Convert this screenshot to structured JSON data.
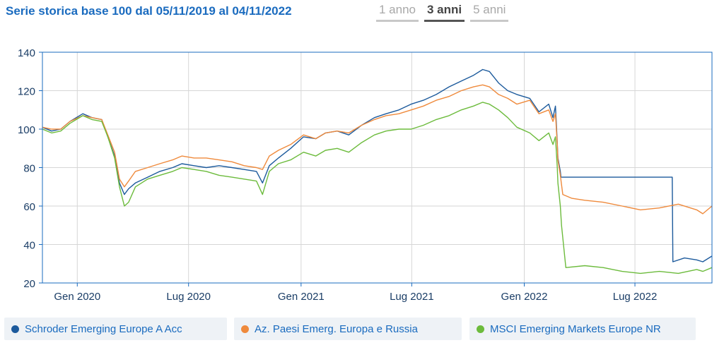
{
  "header": {
    "title": "Serie storica base 100 dal 05/11/2019 al 04/11/2022",
    "tabs": [
      {
        "label": "1 anno",
        "active": false
      },
      {
        "label": "3 anni",
        "active": true
      },
      {
        "label": "5 anni",
        "active": false
      }
    ]
  },
  "colors": {
    "series_1": "#1c5a9c",
    "series_2": "#ef8a3c",
    "series_3": "#6cbb3c",
    "axis": "#1a6bbf",
    "grid": "#d6d6d6"
  },
  "legend": {
    "items": [
      {
        "label": "Schroder Emerging Europe A Acc",
        "color": "#1c5a9c"
      },
      {
        "label": "Az. Paesi Emerg. Europa e Russia",
        "color": "#ef8a3c"
      },
      {
        "label": "MSCI Emerging Markets Europe NR",
        "color": "#6cbb3c"
      }
    ]
  },
  "chart_data": {
    "type": "line",
    "title": "Serie storica base 100 dal 05/11/2019 al 04/11/2022",
    "ylim": [
      20,
      140
    ],
    "yticks": [
      20,
      40,
      60,
      80,
      100,
      120,
      140
    ],
    "xlim": [
      "2019-11-05",
      "2022-11-04"
    ],
    "xticks": [
      {
        "date": "2020-01-01",
        "label": "Gen 2020"
      },
      {
        "date": "2020-07-01",
        "label": "Lug 2020"
      },
      {
        "date": "2021-01-01",
        "label": "Gen 2021"
      },
      {
        "date": "2021-07-01",
        "label": "Lug 2021"
      },
      {
        "date": "2022-01-01",
        "label": "Gen 2022"
      },
      {
        "date": "2022-07-01",
        "label": "Lug 2022"
      }
    ],
    "grid": true,
    "legend_position": "bottom",
    "series": [
      {
        "name": "Schroder Emerging Europe A Acc",
        "color": "#1c5a9c",
        "x": [
          "2019-11-05",
          "2019-11-20",
          "2019-12-05",
          "2019-12-20",
          "2020-01-10",
          "2020-01-25",
          "2020-02-10",
          "2020-02-20",
          "2020-03-02",
          "2020-03-10",
          "2020-03-18",
          "2020-03-25",
          "2020-04-05",
          "2020-04-25",
          "2020-05-15",
          "2020-06-05",
          "2020-06-20",
          "2020-07-10",
          "2020-07-30",
          "2020-08-20",
          "2020-09-10",
          "2020-09-30",
          "2020-10-20",
          "2020-10-30",
          "2020-11-10",
          "2020-11-25",
          "2020-12-15",
          "2021-01-05",
          "2021-01-25",
          "2021-02-10",
          "2021-03-01",
          "2021-03-20",
          "2021-04-10",
          "2021-05-01",
          "2021-05-20",
          "2021-06-10",
          "2021-06-30",
          "2021-07-20",
          "2021-08-10",
          "2021-08-31",
          "2021-09-20",
          "2021-10-10",
          "2021-10-25",
          "2021-11-05",
          "2021-11-20",
          "2021-12-05",
          "2021-12-20",
          "2022-01-10",
          "2022-01-25",
          "2022-02-10",
          "2022-02-17",
          "2022-02-21",
          "2022-02-24",
          "2022-02-25",
          "2022-03-01",
          "2022-03-02",
          "2022-08-31",
          "2022-09-01",
          "2022-09-20",
          "2022-10-10",
          "2022-10-20",
          "2022-11-04"
        ],
        "values": [
          101,
          99,
          100,
          104,
          108,
          106,
          105,
          96,
          86,
          72,
          66,
          69,
          72,
          75,
          78,
          80,
          82,
          81,
          80,
          81,
          80,
          79,
          78,
          72,
          81,
          85,
          90,
          96,
          95,
          98,
          99,
          97,
          102,
          106,
          108,
          110,
          113,
          115,
          118,
          122,
          125,
          128,
          131,
          130,
          124,
          120,
          118,
          116,
          109,
          113,
          106,
          112,
          93,
          85,
          78,
          75,
          75,
          31,
          33,
          32,
          31,
          34
        ]
      },
      {
        "name": "Az. Paesi Emerg. Europa e Russia",
        "color": "#ef8a3c",
        "x": [
          "2019-11-05",
          "2019-11-20",
          "2019-12-05",
          "2019-12-20",
          "2020-01-10",
          "2020-01-25",
          "2020-02-10",
          "2020-02-20",
          "2020-03-02",
          "2020-03-10",
          "2020-03-18",
          "2020-03-25",
          "2020-04-05",
          "2020-04-25",
          "2020-05-15",
          "2020-06-05",
          "2020-06-20",
          "2020-07-10",
          "2020-07-30",
          "2020-08-20",
          "2020-09-10",
          "2020-09-30",
          "2020-10-20",
          "2020-10-30",
          "2020-11-10",
          "2020-11-25",
          "2020-12-15",
          "2021-01-05",
          "2021-01-25",
          "2021-02-10",
          "2021-03-01",
          "2021-03-20",
          "2021-04-10",
          "2021-05-01",
          "2021-05-20",
          "2021-06-10",
          "2021-06-30",
          "2021-07-20",
          "2021-08-10",
          "2021-08-31",
          "2021-09-20",
          "2021-10-10",
          "2021-10-25",
          "2021-11-05",
          "2021-11-20",
          "2021-12-05",
          "2021-12-20",
          "2022-01-10",
          "2022-01-25",
          "2022-02-10",
          "2022-02-17",
          "2022-02-21",
          "2022-02-24",
          "2022-02-25",
          "2022-03-01",
          "2022-03-05",
          "2022-03-20",
          "2022-04-10",
          "2022-05-10",
          "2022-06-10",
          "2022-07-10",
          "2022-08-10",
          "2022-09-10",
          "2022-10-10",
          "2022-10-20",
          "2022-11-04"
        ],
        "values": [
          101,
          100,
          100,
          104,
          107,
          106,
          105,
          97,
          88,
          74,
          70,
          73,
          78,
          80,
          82,
          84,
          86,
          85,
          85,
          84,
          83,
          81,
          80,
          79,
          86,
          89,
          92,
          97,
          95,
          98,
          99,
          98,
          102,
          105,
          107,
          108,
          110,
          112,
          115,
          117,
          120,
          122,
          123,
          122,
          118,
          116,
          113,
          115,
          108,
          110,
          104,
          108,
          92,
          84,
          76,
          66,
          64,
          63,
          62,
          60,
          58,
          59,
          61,
          58,
          56,
          60
        ]
      },
      {
        "name": "MSCI Emerging Markets Europe NR",
        "color": "#6cbb3c",
        "x": [
          "2019-11-05",
          "2019-11-20",
          "2019-12-05",
          "2019-12-20",
          "2020-01-10",
          "2020-01-25",
          "2020-02-10",
          "2020-02-20",
          "2020-03-02",
          "2020-03-10",
          "2020-03-18",
          "2020-03-25",
          "2020-04-05",
          "2020-04-25",
          "2020-05-15",
          "2020-06-05",
          "2020-06-20",
          "2020-07-10",
          "2020-07-30",
          "2020-08-20",
          "2020-09-10",
          "2020-09-30",
          "2020-10-20",
          "2020-10-30",
          "2020-11-10",
          "2020-11-25",
          "2020-12-15",
          "2021-01-05",
          "2021-01-25",
          "2021-02-10",
          "2021-03-01",
          "2021-03-20",
          "2021-04-10",
          "2021-05-01",
          "2021-05-20",
          "2021-06-10",
          "2021-06-30",
          "2021-07-20",
          "2021-08-10",
          "2021-08-31",
          "2021-09-20",
          "2021-10-10",
          "2021-10-25",
          "2021-11-05",
          "2021-11-20",
          "2021-12-05",
          "2021-12-20",
          "2022-01-10",
          "2022-01-25",
          "2022-02-10",
          "2022-02-17",
          "2022-02-21",
          "2022-02-24",
          "2022-02-25",
          "2022-03-01",
          "2022-03-03",
          "2022-03-10",
          "2022-04-10",
          "2022-05-10",
          "2022-06-10",
          "2022-07-10",
          "2022-08-10",
          "2022-09-10",
          "2022-10-10",
          "2022-10-20",
          "2022-11-04"
        ],
        "values": [
          100,
          98,
          99,
          103,
          107,
          105,
          104,
          96,
          85,
          70,
          60,
          62,
          70,
          74,
          76,
          78,
          80,
          79,
          78,
          76,
          75,
          74,
          73,
          66,
          78,
          82,
          84,
          88,
          86,
          89,
          90,
          88,
          93,
          97,
          99,
          100,
          100,
          102,
          105,
          107,
          110,
          112,
          114,
          113,
          110,
          106,
          101,
          98,
          94,
          98,
          92,
          96,
          80,
          72,
          60,
          50,
          28,
          29,
          28,
          26,
          25,
          26,
          25,
          27,
          26,
          28
        ]
      }
    ]
  }
}
